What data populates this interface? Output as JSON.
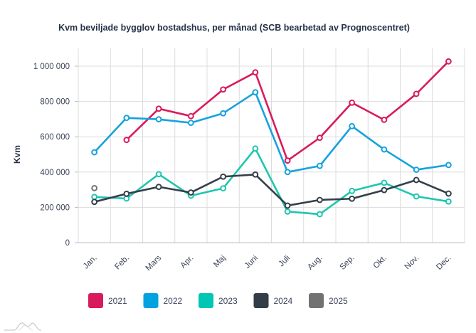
{
  "chart_data": {
    "type": "line",
    "title": "Kvm beviljade bygglov bostadshus, per månad (SCB bearbetad av Prognoscentret)",
    "xlabel": "",
    "ylabel": "Kvm",
    "ylim": [
      0,
      1100000
    ],
    "yticks": [
      0,
      200000,
      400000,
      600000,
      800000,
      1000000
    ],
    "ytick_labels": [
      "0",
      "200 000",
      "400 000",
      "600 000",
      "800 000",
      "1 000 000"
    ],
    "categories": [
      "Jan.",
      "Feb.",
      "Mars",
      "Apr.",
      "Maj",
      "Juni",
      "Juli",
      "Aug.",
      "Sep.",
      "Okt.",
      "Nov.",
      "Dec."
    ],
    "grid": true,
    "legend_position": "bottom",
    "series": [
      {
        "name": "2021",
        "color": "#d81b5c",
        "values": [
          null,
          582000,
          759000,
          717000,
          868000,
          965000,
          465000,
          594000,
          793000,
          696000,
          843000,
          1027000
        ]
      },
      {
        "name": "2022",
        "color": "#17a2dc",
        "values": [
          512000,
          707000,
          699000,
          679000,
          733000,
          852000,
          400000,
          435000,
          660000,
          528000,
          413000,
          440000
        ]
      },
      {
        "name": "2023",
        "color": "#1ec6b0",
        "values": [
          259000,
          250000,
          388000,
          266000,
          308000,
          533000,
          176000,
          161000,
          293000,
          339000,
          262000,
          233000
        ]
      },
      {
        "name": "2024",
        "color": "#353f4b",
        "values": [
          231000,
          277000,
          316000,
          284000,
          374000,
          386000,
          210000,
          242000,
          249000,
          298000,
          355000,
          278000
        ]
      },
      {
        "name": "2025",
        "color": "#737373",
        "values": [
          309000,
          null,
          null,
          null,
          null,
          null,
          null,
          null,
          null,
          null,
          null,
          null
        ]
      }
    ]
  },
  "legend": {
    "items": [
      {
        "label": "2021",
        "color": "#d81b5c"
      },
      {
        "label": "2022",
        "color": "#00a2e0"
      },
      {
        "label": "2023",
        "color": "#00c6b4"
      },
      {
        "label": "2024",
        "color": "#333d48"
      },
      {
        "label": "2025",
        "color": "#727272"
      }
    ]
  },
  "logo": {
    "icon": "mountain-logo-icon"
  }
}
